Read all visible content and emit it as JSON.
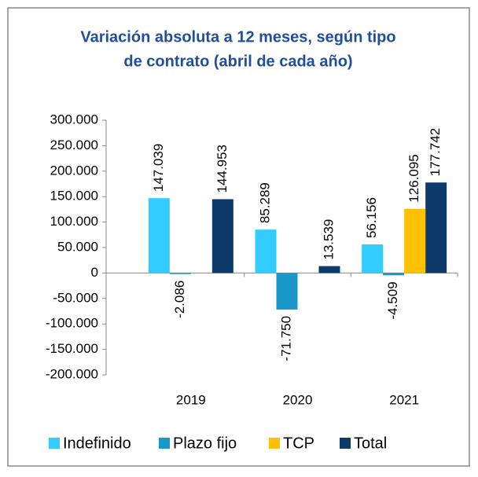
{
  "chart_data": {
    "type": "bar",
    "title": "Variación absoluta a 12 meses, según tipo de contrato (abril de cada año)",
    "title_lines": [
      "Variación absoluta a 12 meses, según tipo",
      "de contrato (abril de cada año)"
    ],
    "categories": [
      "2019",
      "2020",
      "2021"
    ],
    "series": [
      {
        "name": "Indefinido",
        "color": "#33ccff",
        "values": [
          147039,
          85289,
          56156
        ],
        "value_labels": [
          "147.039",
          "85.289",
          "56.156"
        ]
      },
      {
        "name": "Plazo fijo",
        "color": "#1899c9",
        "values": [
          -2086,
          -71750,
          -4509
        ],
        "value_labels": [
          "-2.086",
          "-71.750",
          "-4.509"
        ]
      },
      {
        "name": "TCP",
        "color": "#ffc000",
        "values": [
          null,
          null,
          126095
        ],
        "value_labels": [
          null,
          null,
          "126.095"
        ]
      },
      {
        "name": "Total",
        "color": "#0b3a6b",
        "values": [
          144953,
          13539,
          177742
        ],
        "value_labels": [
          "144.953",
          "13.539",
          "177.742"
        ]
      }
    ],
    "ylim": [
      -200000,
      300000
    ],
    "yticks": [
      {
        "value": -200000,
        "label": "-200.000"
      },
      {
        "value": -150000,
        "label": "-150.000"
      },
      {
        "value": -100000,
        "label": "-100.000"
      },
      {
        "value": -50000,
        "label": "-50.000"
      },
      0,
      {
        "value": 50000,
        "label": "50.000"
      },
      {
        "value": 100000,
        "label": "100.000"
      },
      {
        "value": 150000,
        "label": "150.000"
      },
      {
        "value": 200000,
        "label": "200.000"
      },
      {
        "value": 250000,
        "label": "250.000"
      },
      {
        "value": 300000,
        "label": "300.000"
      }
    ],
    "legend": "bottom"
  }
}
